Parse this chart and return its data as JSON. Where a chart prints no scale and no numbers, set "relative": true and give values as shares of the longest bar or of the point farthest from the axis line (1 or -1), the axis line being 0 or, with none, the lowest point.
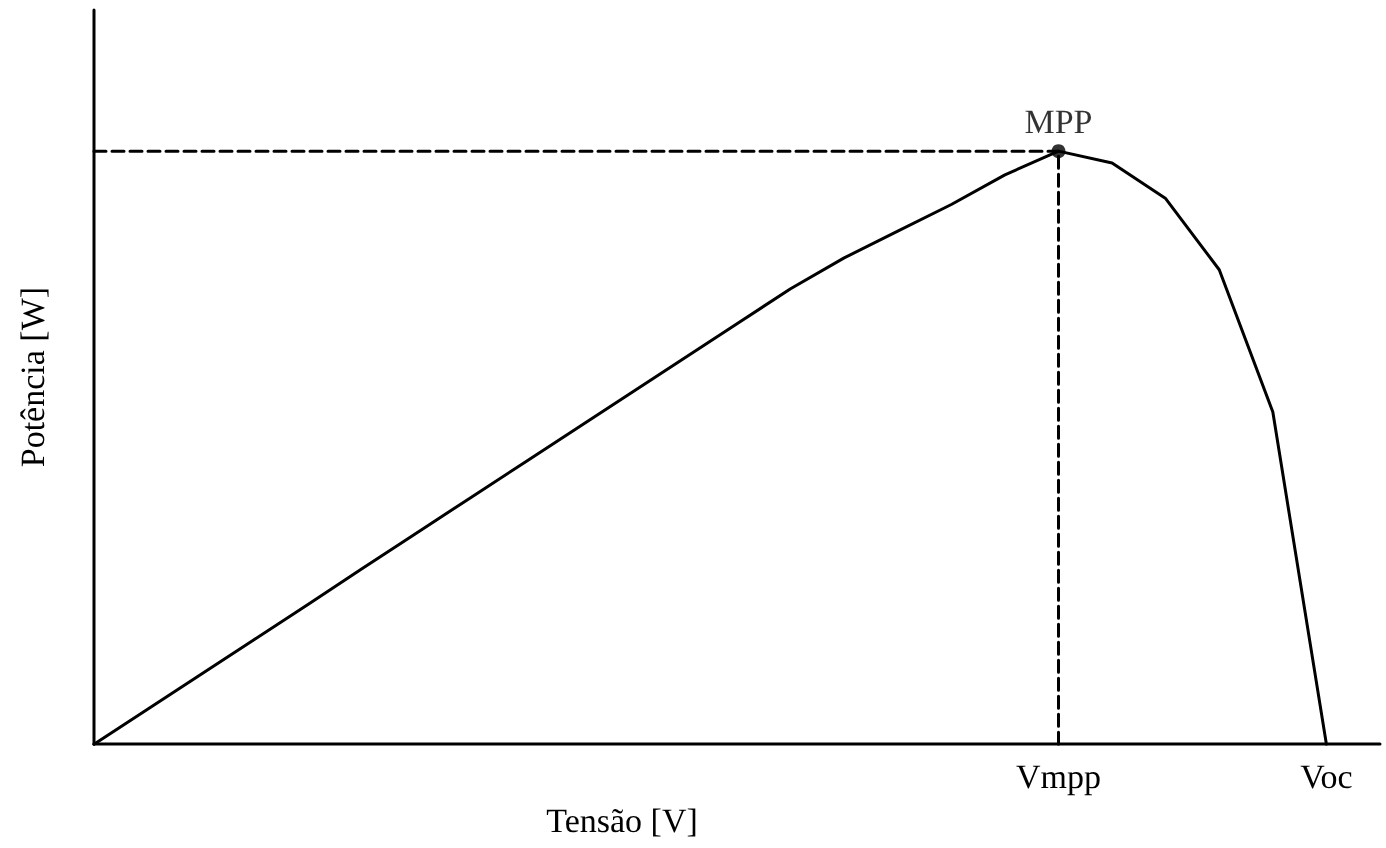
{
  "chart_data": {
    "type": "line",
    "relative": true,
    "xlabel": "Tensão [V]",
    "ylabel": "Potência [W]",
    "tick_labels": "x",
    "grid": false,
    "categories": [
      null,
      null,
      null,
      null,
      null,
      null,
      null,
      null,
      null,
      null,
      null,
      null,
      null,
      null,
      null,
      null,
      null,
      null,
      "Vmpp",
      null,
      null,
      null,
      null,
      "Voc",
      null
    ],
    "annotations": [
      {
        "text": "MPP",
        "x": "Vmpp",
        "y": 1
      }
    ],
    "series": [
      {
        "color": "#000000",
        "marker": "none",
        "line_style": "solid",
        "values": [
          0,
          0.059,
          0.118,
          0.177,
          0.236,
          0.296,
          0.355,
          0.414,
          0.473,
          0.532,
          0.591,
          0.65,
          0.709,
          0.768,
          0.82,
          0.865,
          0.91,
          0.96,
          1,
          0.98,
          0.92,
          0.8,
          0.56,
          0,
          null
        ]
      },
      {
        "color": "#000000",
        "marker": "none",
        "line_style": "dashed",
        "values": [
          1,
          1,
          1,
          1,
          1,
          1,
          1,
          1,
          1,
          1,
          1,
          1,
          1,
          1,
          1,
          1,
          1,
          1,
          1,
          null,
          null,
          null,
          null,
          null,
          null
        ]
      },
      {
        "color": "#000000",
        "marker": "none",
        "line_style": "dashed",
        "x": [
          "Vmpp",
          "Vmpp"
        ],
        "values": [
          0,
          1
        ]
      },
      {
        "type": "scatter",
        "color": "#000000",
        "marker": "circle",
        "x": [
          "Vmpp"
        ],
        "values": [
          1
        ]
      }
    ]
  }
}
